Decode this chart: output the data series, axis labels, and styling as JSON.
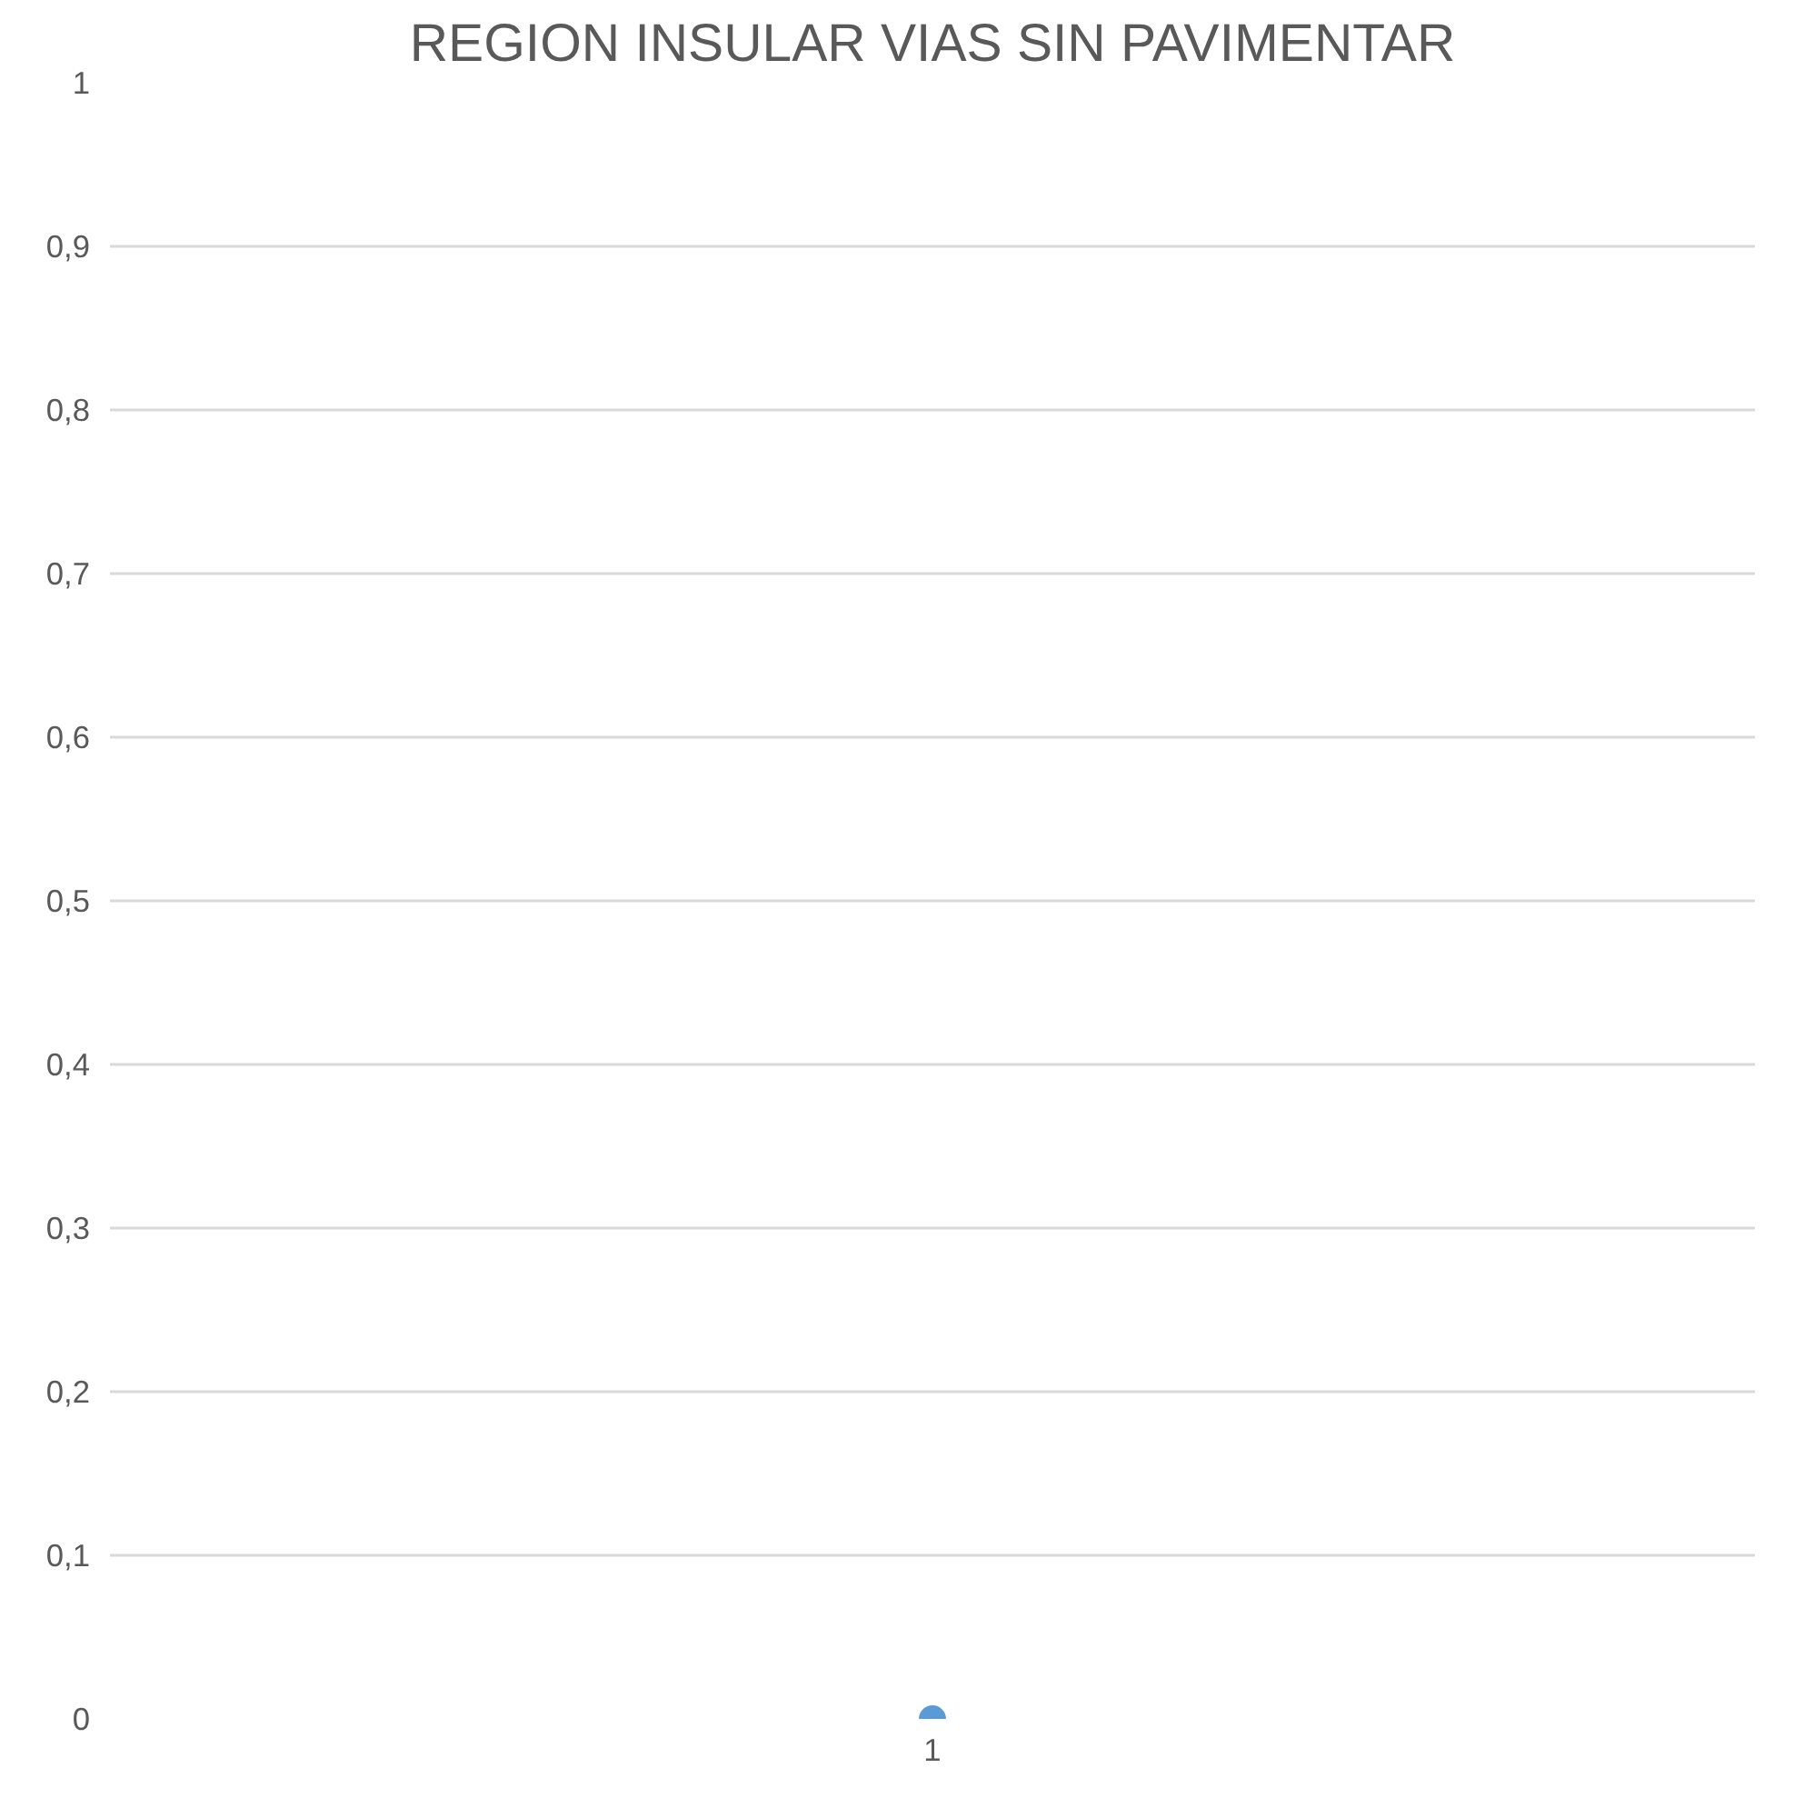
{
  "chart_data": {
    "type": "line",
    "title": "REGION INSULAR VIAS SIN PAVIMENTAR",
    "categories": [
      "1"
    ],
    "series": [
      {
        "color": "#5b9bd5",
        "values": [
          0
        ]
      }
    ],
    "ylim": [
      0,
      1
    ],
    "yticks": [
      0,
      {
        "value": 0.1,
        "label": "0,1"
      },
      {
        "value": 0.2,
        "label": "0,2"
      },
      {
        "value": 0.3,
        "label": "0,3"
      },
      {
        "value": 0.4,
        "label": "0,4"
      },
      {
        "value": 0.5,
        "label": "0,5"
      },
      {
        "value": 0.6,
        "label": "0,6"
      },
      {
        "value": 0.7,
        "label": "0,7"
      },
      {
        "value": 0.8,
        "label": "0,8"
      },
      {
        "value": 0.9,
        "label": "0,9"
      },
      1
    ],
    "grid": "y",
    "marker": "circle"
  }
}
